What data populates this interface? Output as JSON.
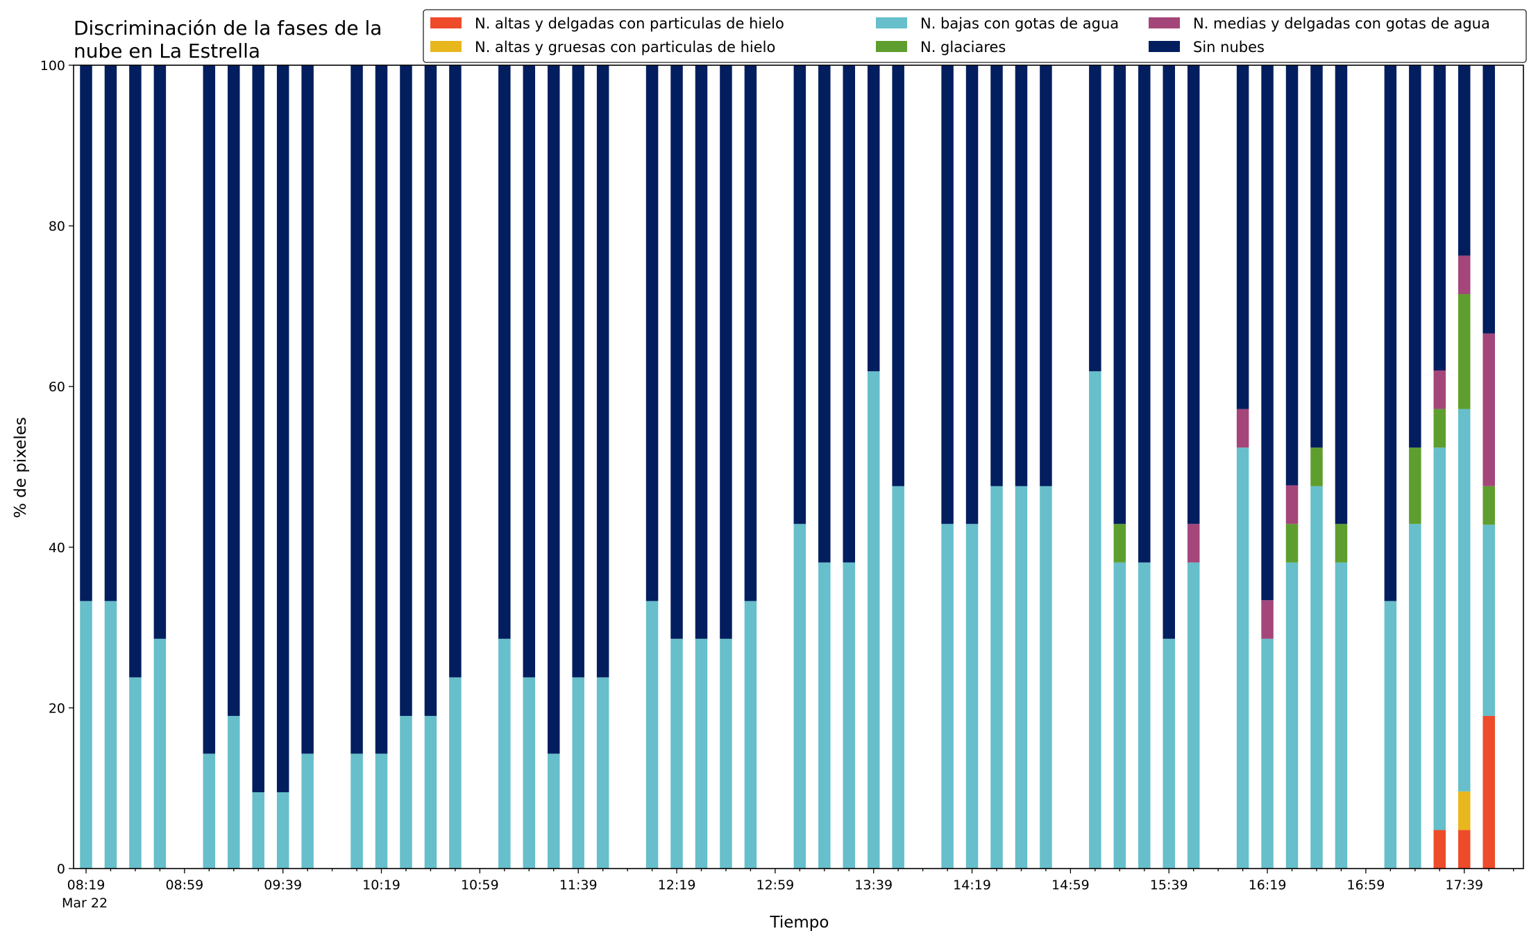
{
  "chart_data": {
    "type": "bar",
    "stacked": true,
    "title_lines": [
      "Discriminación de la fases de la",
      "nube en La Estrella"
    ],
    "xlabel": "Tiempo",
    "ylabel": "% de pixeles",
    "ylim": [
      0,
      100
    ],
    "yticks": [
      0,
      20,
      40,
      60,
      80,
      100
    ],
    "x_tick_labels": [
      "08:19",
      "08:59",
      "09:39",
      "10:19",
      "10:59",
      "11:39",
      "12:19",
      "12:59",
      "13:39",
      "14:19",
      "14:59",
      "15:39",
      "16:19",
      "16:59",
      "17:39"
    ],
    "x_date_label": "Mar 22",
    "legend_placement": "top-right",
    "grid": false,
    "slot_count": 59,
    "bars": [
      {
        "slot": 0,
        "values": [
          0,
          0,
          33.3,
          0,
          0,
          66.7
        ]
      },
      {
        "slot": 1,
        "values": [
          0,
          0,
          33.3,
          0,
          0,
          66.7
        ]
      },
      {
        "slot": 2,
        "values": [
          0,
          0,
          23.8,
          0,
          0,
          76.2
        ]
      },
      {
        "slot": 3,
        "values": [
          0,
          0,
          28.6,
          0,
          0,
          71.4
        ]
      },
      {
        "slot": 5,
        "values": [
          0,
          0,
          14.3,
          0,
          0,
          85.7
        ]
      },
      {
        "slot": 6,
        "values": [
          0,
          0,
          19.0,
          0,
          0,
          81.0
        ]
      },
      {
        "slot": 7,
        "values": [
          0,
          0,
          9.5,
          0,
          0,
          90.5
        ]
      },
      {
        "slot": 8,
        "values": [
          0,
          0,
          9.5,
          0,
          0,
          90.5
        ]
      },
      {
        "slot": 9,
        "values": [
          0,
          0,
          14.3,
          0,
          0,
          85.7
        ]
      },
      {
        "slot": 11,
        "values": [
          0,
          0,
          14.3,
          0,
          0,
          85.7
        ]
      },
      {
        "slot": 12,
        "values": [
          0,
          0,
          14.3,
          0,
          0,
          85.7
        ]
      },
      {
        "slot": 13,
        "values": [
          0,
          0,
          19.0,
          0,
          0,
          81.0
        ]
      },
      {
        "slot": 14,
        "values": [
          0,
          0,
          19.0,
          0,
          0,
          81.0
        ]
      },
      {
        "slot": 15,
        "values": [
          0,
          0,
          23.8,
          0,
          0,
          76.2
        ]
      },
      {
        "slot": 17,
        "values": [
          0,
          0,
          28.6,
          0,
          0,
          71.4
        ]
      },
      {
        "slot": 18,
        "values": [
          0,
          0,
          23.8,
          0,
          0,
          76.2
        ]
      },
      {
        "slot": 19,
        "values": [
          0,
          0,
          14.3,
          0,
          0,
          85.7
        ]
      },
      {
        "slot": 20,
        "values": [
          0,
          0,
          23.8,
          0,
          0,
          76.2
        ]
      },
      {
        "slot": 21,
        "values": [
          0,
          0,
          23.8,
          0,
          0,
          76.2
        ]
      },
      {
        "slot": 23,
        "values": [
          0,
          0,
          33.3,
          0,
          0,
          66.7
        ]
      },
      {
        "slot": 24,
        "values": [
          0,
          0,
          28.6,
          0,
          0,
          71.4
        ]
      },
      {
        "slot": 25,
        "values": [
          0,
          0,
          28.6,
          0,
          0,
          71.4
        ]
      },
      {
        "slot": 26,
        "values": [
          0,
          0,
          28.6,
          0,
          0,
          71.4
        ]
      },
      {
        "slot": 27,
        "values": [
          0,
          0,
          33.3,
          0,
          0,
          66.7
        ]
      },
      {
        "slot": 29,
        "values": [
          0,
          0,
          42.9,
          0,
          0,
          57.1
        ]
      },
      {
        "slot": 30,
        "values": [
          0,
          0,
          38.1,
          0,
          0,
          61.9
        ]
      },
      {
        "slot": 31,
        "values": [
          0,
          0,
          38.1,
          0,
          0,
          61.9
        ]
      },
      {
        "slot": 32,
        "values": [
          0,
          0,
          61.9,
          0,
          0,
          38.1
        ]
      },
      {
        "slot": 33,
        "values": [
          0,
          0,
          47.6,
          0,
          0,
          52.4
        ]
      },
      {
        "slot": 35,
        "values": [
          0,
          0,
          42.9,
          0,
          0,
          57.1
        ]
      },
      {
        "slot": 36,
        "values": [
          0,
          0,
          42.9,
          0,
          0,
          57.1
        ]
      },
      {
        "slot": 37,
        "values": [
          0,
          0,
          47.6,
          0,
          0,
          52.4
        ]
      },
      {
        "slot": 38,
        "values": [
          0,
          0,
          47.6,
          0,
          0,
          52.4
        ]
      },
      {
        "slot": 39,
        "values": [
          0,
          0,
          47.6,
          0,
          0,
          52.4
        ]
      },
      {
        "slot": 41,
        "values": [
          0,
          0,
          61.9,
          0,
          0,
          38.1
        ]
      },
      {
        "slot": 42,
        "values": [
          0,
          0,
          38.1,
          4.8,
          0,
          57.1
        ]
      },
      {
        "slot": 43,
        "values": [
          0,
          0,
          38.1,
          0,
          0,
          61.9
        ]
      },
      {
        "slot": 44,
        "values": [
          0,
          0,
          28.6,
          0,
          0,
          71.4
        ]
      },
      {
        "slot": 45,
        "values": [
          0,
          0,
          38.1,
          0,
          4.8,
          57.1
        ]
      },
      {
        "slot": 47,
        "values": [
          0,
          0,
          52.4,
          0,
          4.8,
          42.8
        ]
      },
      {
        "slot": 48,
        "values": [
          0,
          0,
          28.6,
          0,
          4.8,
          66.6
        ]
      },
      {
        "slot": 49,
        "values": [
          0,
          0,
          38.1,
          4.8,
          4.8,
          52.3
        ]
      },
      {
        "slot": 50,
        "values": [
          0,
          0,
          47.6,
          4.8,
          0,
          47.6
        ]
      },
      {
        "slot": 51,
        "values": [
          0,
          0,
          38.1,
          4.8,
          0,
          57.1
        ]
      },
      {
        "slot": 53,
        "values": [
          0,
          0,
          33.3,
          0,
          0,
          66.7
        ]
      },
      {
        "slot": 54,
        "values": [
          0,
          0,
          42.9,
          9.5,
          0,
          47.6
        ]
      },
      {
        "slot": 55,
        "values": [
          4.8,
          0,
          47.6,
          4.8,
          4.8,
          38.0
        ]
      },
      {
        "slot": 56,
        "values": [
          4.8,
          4.8,
          47.6,
          14.3,
          4.8,
          23.7
        ]
      },
      {
        "slot": 57,
        "values": [
          19.0,
          0,
          23.8,
          4.8,
          19.0,
          33.4
        ]
      }
    ],
    "series": [
      {
        "name": "N. altas y delgadas con particulas de hielo",
        "color": "#ee4b2b"
      },
      {
        "name": "N. altas y gruesas con particulas de hielo",
        "color": "#e8b71e"
      },
      {
        "name": "N. bajas con gotas de agua",
        "color": "#66bfcb"
      },
      {
        "name": "N. glaciares",
        "color": "#5e9e2e"
      },
      {
        "name": "N. medias y delgadas con gotas de agua",
        "color": "#a4467a"
      },
      {
        "name": "Sin nubes",
        "color": "#031e5f"
      }
    ]
  }
}
